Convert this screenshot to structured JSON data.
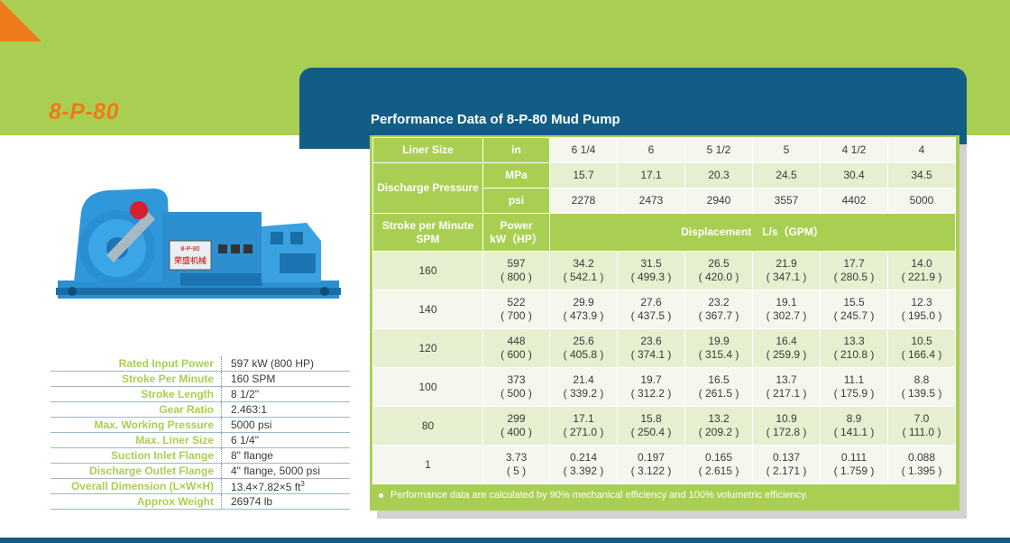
{
  "header": {
    "model": "8-P-80"
  },
  "accent_colors": {
    "green": "#a9cf52",
    "blue": "#115d86",
    "orange": "#ef7a1a"
  },
  "pump_image": {
    "nameplate_line1": "8-P-80",
    "nameplate_line2": "荣盛机械"
  },
  "specs": [
    {
      "label": "Rated Input Power",
      "value": "597 kW (800 HP)"
    },
    {
      "label": "Stroke Per Minute",
      "value": "160 SPM"
    },
    {
      "label": "Stroke Length",
      "value": "8 1/2\""
    },
    {
      "label": "Gear Ratio",
      "value": "2.463:1"
    },
    {
      "label": "Max. Working Pressure",
      "value": "5000 psi"
    },
    {
      "label": "Max. Liner Size",
      "value": "6 1/4\""
    },
    {
      "label": "Suction Inlet Flange",
      "value": "8\" flange"
    },
    {
      "label": "Discharge Outlet Flange",
      "value": "4\" flange, 5000 psi"
    },
    {
      "label": "Overall Dimension (L×W×H)",
      "value": "13.4×7.82×5 ft",
      "value_sup": "3"
    },
    {
      "label": "Approx Weight",
      "value": "26974 lb"
    }
  ],
  "table": {
    "title": "Performance Data of 8-P-80 Mud Pump",
    "liner_label": "Liner Size",
    "liner_unit": "in",
    "liner_sizes": [
      "6 1/4",
      "6",
      "5 1/2",
      "5",
      "4 1/2",
      "4"
    ],
    "pressure_label": "Discharge Pressure",
    "pressure_unit_mpa": "MPa",
    "pressure_unit_psi": "psi",
    "pressure_mpa": [
      "15.7",
      "17.1",
      "20.3",
      "24.5",
      "30.4",
      "34.5"
    ],
    "pressure_psi": [
      "2278",
      "2473",
      "2940",
      "3557",
      "4402",
      "5000"
    ],
    "spm_label_1": "Stroke per Minute",
    "spm_label_2": "SPM",
    "power_label_1": "Power",
    "power_label_2": "kW（HP）",
    "displacement_label": "Displacement　L/s（GPM）",
    "rows": [
      {
        "spm": "160",
        "kw": "597",
        "hp": "( 800 )",
        "disp": [
          [
            "34.2",
            "( 542.1 )"
          ],
          [
            "31.5",
            "( 499.3 )"
          ],
          [
            "26.5",
            "( 420.0 )"
          ],
          [
            "21.9",
            "( 347.1 )"
          ],
          [
            "17.7",
            "( 280.5 )"
          ],
          [
            "14.0",
            "( 221.9 )"
          ]
        ]
      },
      {
        "spm": "140",
        "kw": "522",
        "hp": "( 700 )",
        "disp": [
          [
            "29.9",
            "( 473.9 )"
          ],
          [
            "27.6",
            "( 437.5 )"
          ],
          [
            "23.2",
            "( 367.7 )"
          ],
          [
            "19.1",
            "( 302.7 )"
          ],
          [
            "15.5",
            "( 245.7 )"
          ],
          [
            "12.3",
            "( 195.0 )"
          ]
        ]
      },
      {
        "spm": "120",
        "kw": "448",
        "hp": "( 600 )",
        "disp": [
          [
            "25.6",
            "( 405.8 )"
          ],
          [
            "23.6",
            "( 374.1 )"
          ],
          [
            "19.9",
            "( 315.4 )"
          ],
          [
            "16.4",
            "( 259.9 )"
          ],
          [
            "13.3",
            "( 210.8 )"
          ],
          [
            "10.5",
            "( 166.4 )"
          ]
        ]
      },
      {
        "spm": "100",
        "kw": "373",
        "hp": "( 500 )",
        "disp": [
          [
            "21.4",
            "( 339.2 )"
          ],
          [
            "19.7",
            "( 312.2 )"
          ],
          [
            "16.5",
            "( 261.5 )"
          ],
          [
            "13.7",
            "( 217.1 )"
          ],
          [
            "11.1",
            "( 175.9 )"
          ],
          [
            "8.8",
            "( 139.5 )"
          ]
        ]
      },
      {
        "spm": "80",
        "kw": "299",
        "hp": "( 400 )",
        "disp": [
          [
            "17.1",
            "( 271.0 )"
          ],
          [
            "15.8",
            "( 250.4 )"
          ],
          [
            "13.2",
            "( 209.2 )"
          ],
          [
            "10.9",
            "( 172.8 )"
          ],
          [
            "8.9",
            "( 141.1 )"
          ],
          [
            "7.0",
            "( 111.0 )"
          ]
        ]
      },
      {
        "spm": "1",
        "kw": "3.73",
        "hp": "( 5 )",
        "disp": [
          [
            "0.214",
            "( 3.392 )"
          ],
          [
            "0.197",
            "( 3.122 )"
          ],
          [
            "0.165",
            "( 2.615 )"
          ],
          [
            "0.137",
            "( 2.171 )"
          ],
          [
            "0.111",
            "( 1.759 )"
          ],
          [
            "0.088",
            "( 1.395 )"
          ]
        ]
      }
    ],
    "note": "Performance data are calculated by 90% mechanical efficiency and 100% volumetric efficiency."
  }
}
